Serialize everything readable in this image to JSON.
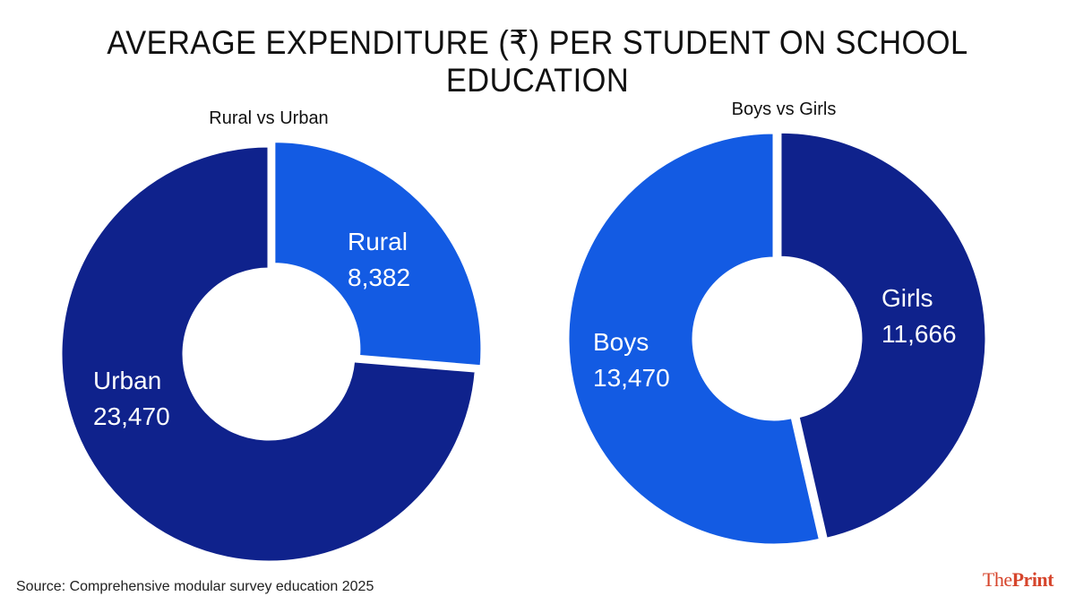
{
  "title": "AVERAGE EXPENDITURE (₹) PER STUDENT ON SCHOOL EDUCATION",
  "source": "Source: Comprehensive modular survey education 2025",
  "logo": {
    "part1": "The",
    "part2": "Print"
  },
  "colors": {
    "dark": "#0f228c",
    "light": "#135be3",
    "background": "#ffffff",
    "logo": "#d6452c"
  },
  "chart_data": [
    {
      "type": "pie",
      "subtitle": "Rural vs Urban",
      "slices": [
        {
          "label": "Rural",
          "value": 8382,
          "value_label": "8,382",
          "color": "#135be3"
        },
        {
          "label": "Urban",
          "value": 23470,
          "value_label": "23,470",
          "color": "#0f228c"
        }
      ]
    },
    {
      "type": "pie",
      "subtitle": "Boys vs Girls",
      "slices": [
        {
          "label": "Girls",
          "value": 11666,
          "value_label": "11,666",
          "color": "#0f228c"
        },
        {
          "label": "Boys",
          "value": 13470,
          "value_label": "13,470",
          "color": "#135be3"
        }
      ]
    }
  ]
}
